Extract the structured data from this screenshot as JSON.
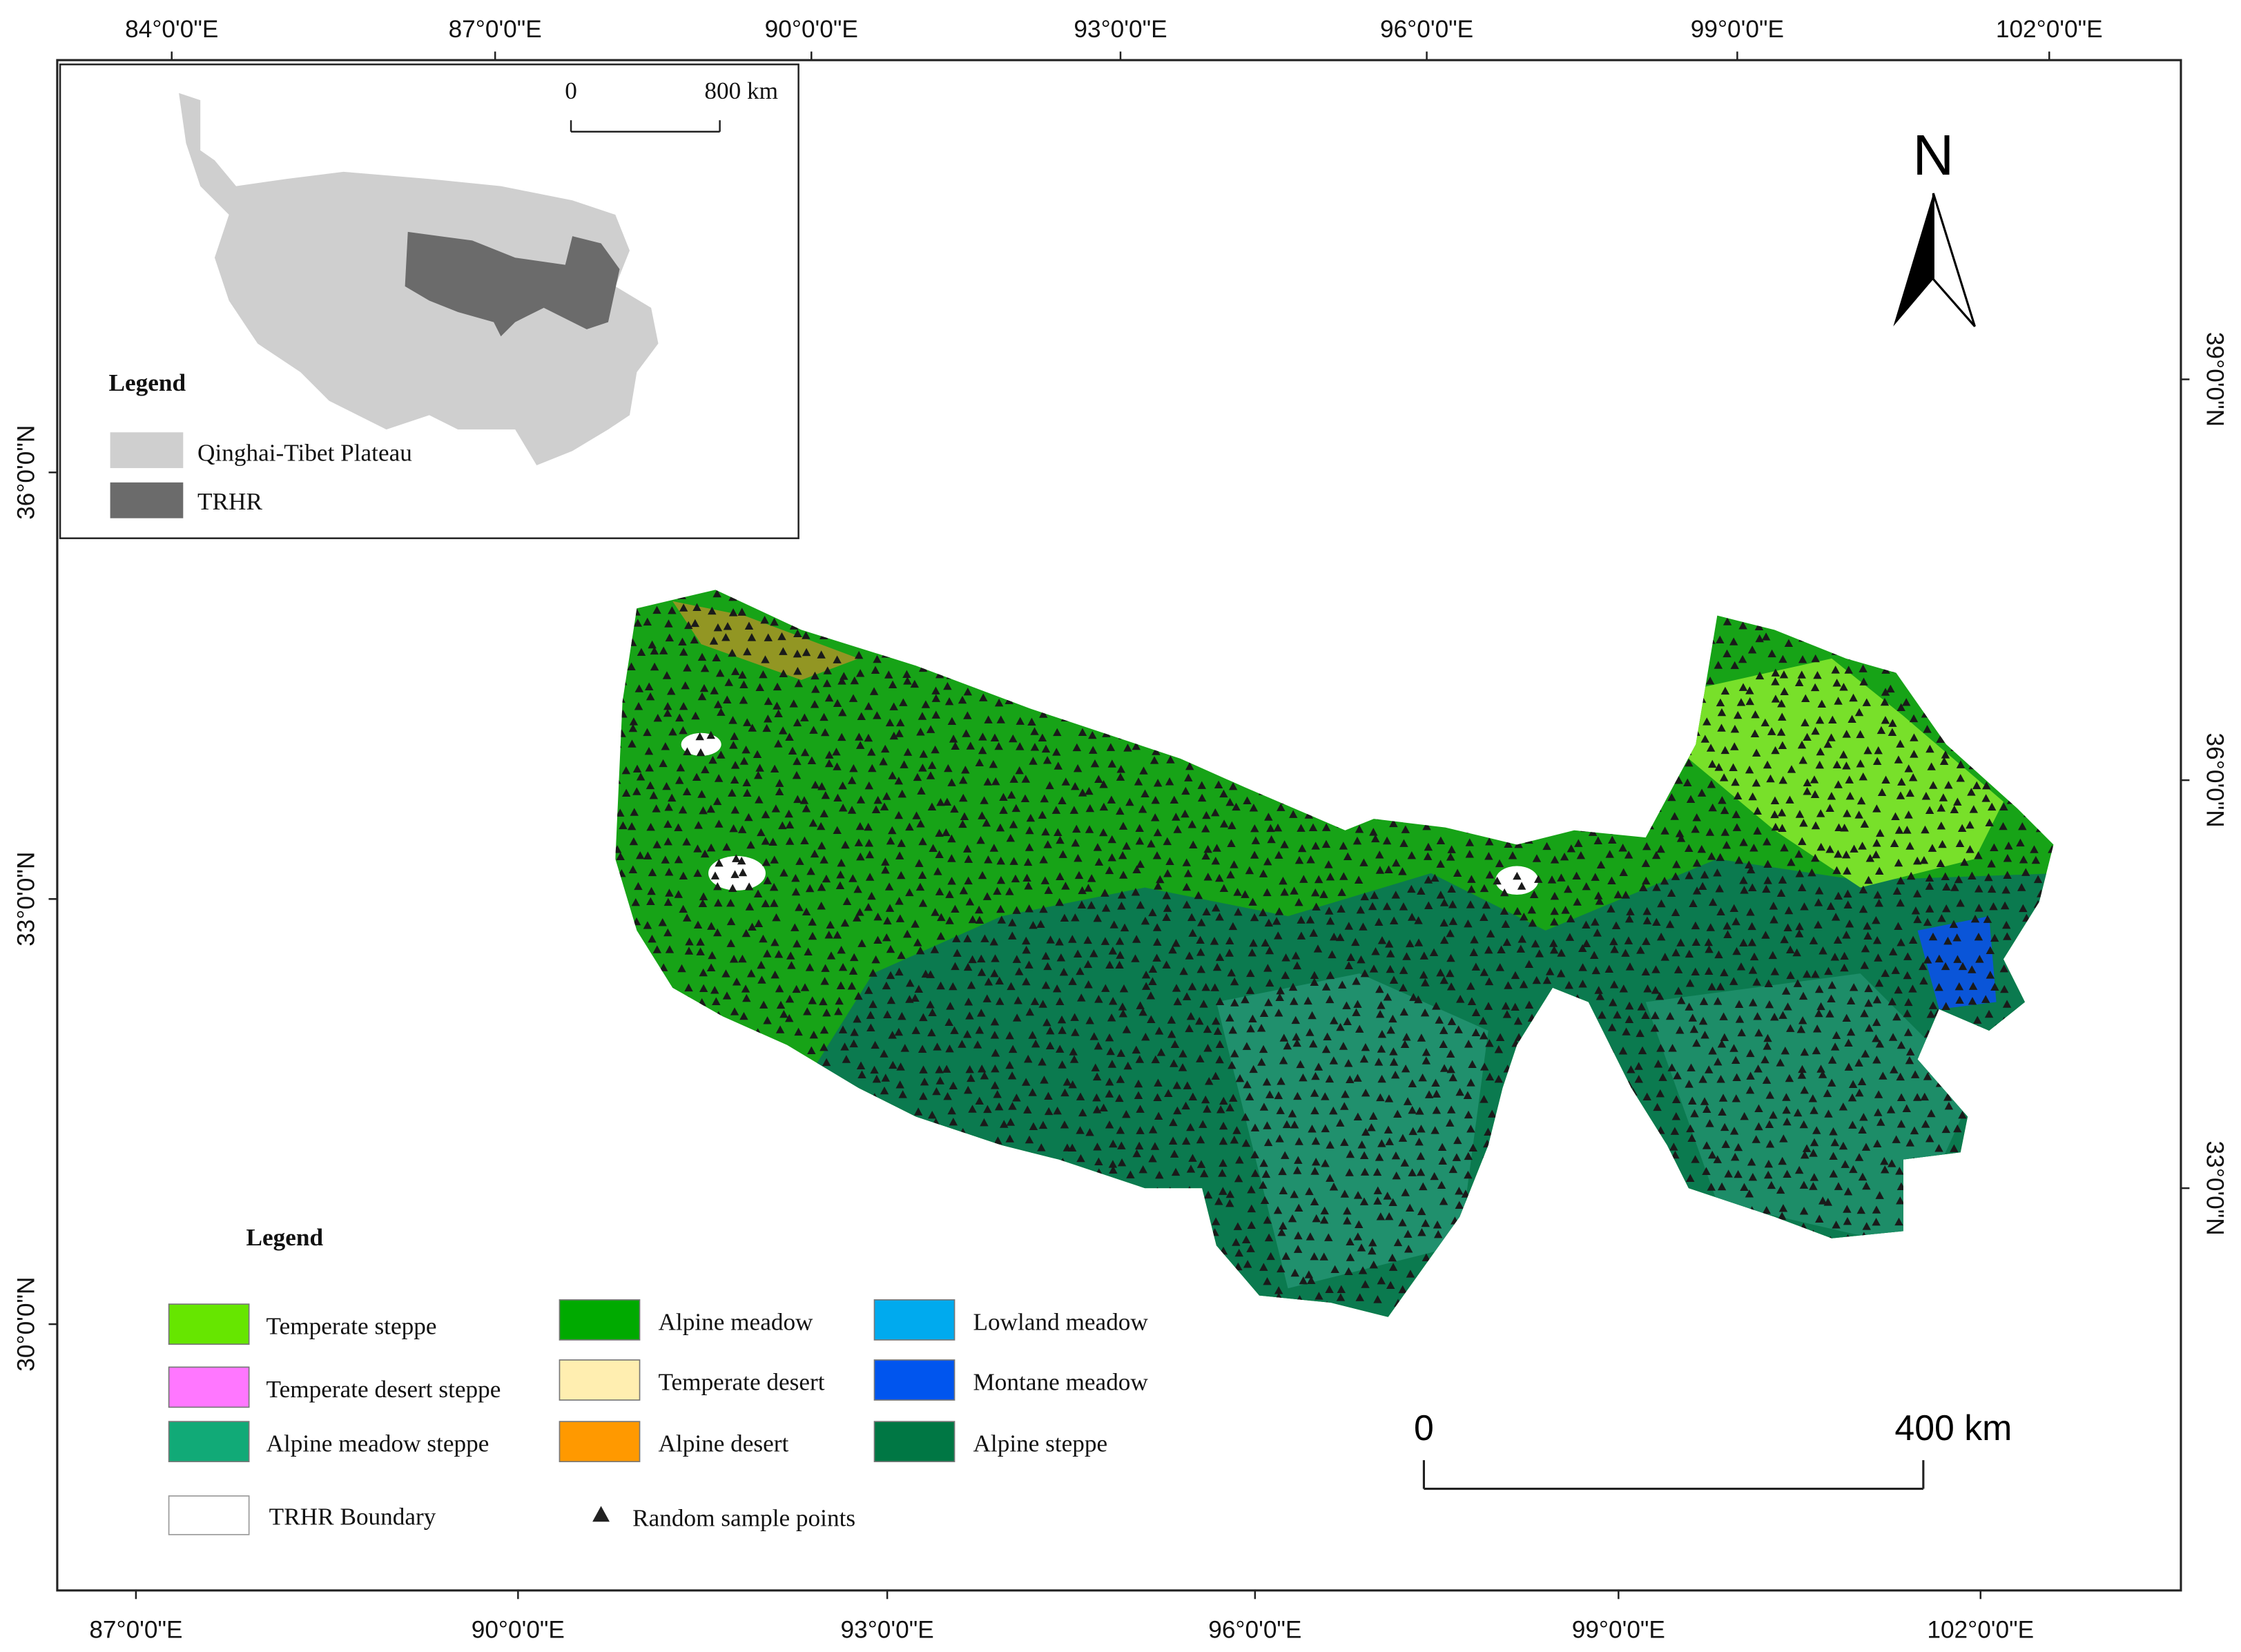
{
  "map": {
    "top_axis_labels": [
      "84°0'0\"E",
      "87°0'0\"E",
      "90°0'0\"E",
      "93°0'0\"E",
      "96°0'0\"E",
      "99°0'0\"E",
      "102°0'0\"E"
    ],
    "bottom_axis_labels": [
      "87°0'0\"E",
      "90°0'0\"E",
      "93°0'0\"E",
      "96°0'0\"E",
      "99°0'0\"E",
      "102°0'0\"E"
    ],
    "left_axis_labels": [
      "36°0'0\"N",
      "33°0'0\"N",
      "30°0'0\"N"
    ],
    "right_axis_labels": [
      "39°0'0\"N",
      "36°0'0\"N",
      "33°0'0\"N"
    ],
    "north": "N",
    "scale_bar": {
      "start": "0",
      "end": "400 km"
    }
  },
  "inset": {
    "scale_bar": {
      "start": "0",
      "end": "800 km"
    },
    "legend": {
      "title": "Legend",
      "items": [
        "Qinghai-Tibet Plateau",
        "TRHR"
      ]
    }
  },
  "legend": {
    "title": "Legend",
    "items": [
      "Temperate steppe",
      "Temperate desert steppe",
      "Alpine meadow steppe",
      "TRHR Boundary",
      "Alpine meadow",
      "Temperate desert",
      "Alpine desert",
      "Random sample points",
      "Lowland meadow",
      "Montane meadow",
      "Alpine steppe"
    ]
  }
}
